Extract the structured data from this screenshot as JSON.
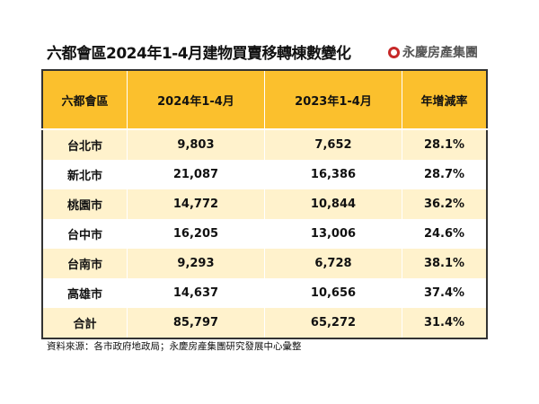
{
  "title": "六都會區2024年1-4月建物買賣移轉棟數變化",
  "logo": "永慶房產集團",
  "colors": {
    "header": "#fbc02d",
    "band": "#fff2cc"
  },
  "table": {
    "headers": [
      "六都會區",
      "2024年1-4月",
      "2023年1-4月",
      "年增減率"
    ],
    "rows": [
      [
        "台北市",
        "9,803",
        "7,652",
        "28.1%"
      ],
      [
        "新北市",
        "21,087",
        "16,386",
        "28.7%"
      ],
      [
        "桃園市",
        "14,772",
        "10,844",
        "36.2%"
      ],
      [
        "台中市",
        "16,205",
        "13,006",
        "24.6%"
      ],
      [
        "台南市",
        "9,293",
        "6,728",
        "38.1%"
      ],
      [
        "高雄市",
        "14,637",
        "10,656",
        "37.4%"
      ],
      [
        "合計",
        "85,797",
        "65,272",
        "31.4%"
      ]
    ]
  },
  "source": "資料來源：各市政府地政局；永慶房產集團研究發展中心彙整"
}
